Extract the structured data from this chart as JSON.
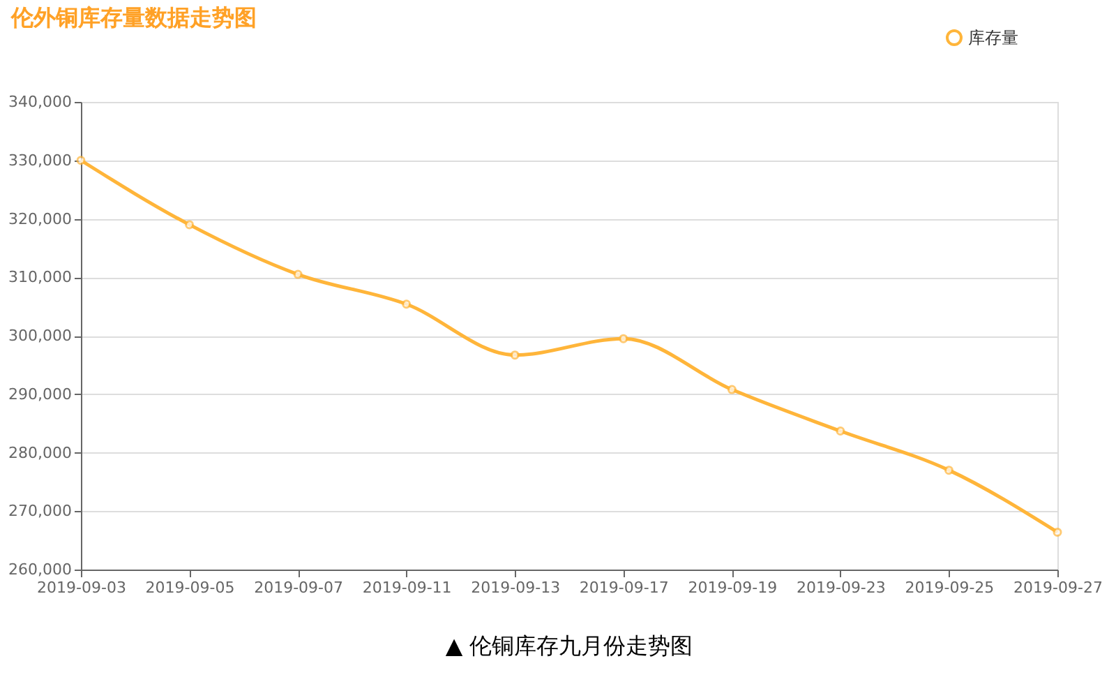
{
  "chart_data": {
    "type": "line",
    "title": "伦外铜库存量数据走势图",
    "categories": [
      "2019-09-03",
      "2019-09-05",
      "2019-09-07",
      "2019-09-11",
      "2019-09-13",
      "2019-09-17",
      "2019-09-19",
      "2019-09-23",
      "2019-09-25",
      "2019-09-27"
    ],
    "series": [
      {
        "name": "库存量",
        "color": "#ffb53a",
        "values": [
          330000,
          319000,
          310500,
          305400,
          296700,
          299500,
          290800,
          283700,
          277000,
          266400
        ]
      }
    ],
    "ylim": [
      260000,
      340000
    ],
    "yticks": [
      {
        "value": 260000,
        "label": "260,000"
      },
      {
        "value": 270000,
        "label": "270,000"
      },
      {
        "value": 280000,
        "label": "280,000"
      },
      {
        "value": 290000,
        "label": "290,000"
      },
      {
        "value": 300000,
        "label": "300,000"
      },
      {
        "value": 310000,
        "label": "310,000"
      },
      {
        "value": 320000,
        "label": "320,000"
      },
      {
        "value": 330000,
        "label": "330,000"
      },
      {
        "value": 340000,
        "label": "340,000"
      }
    ],
    "grid": "y",
    "legend": "top right",
    "marker": "circle",
    "annotations": [
      "▲ 伦铜库存九月份走势图"
    ]
  }
}
